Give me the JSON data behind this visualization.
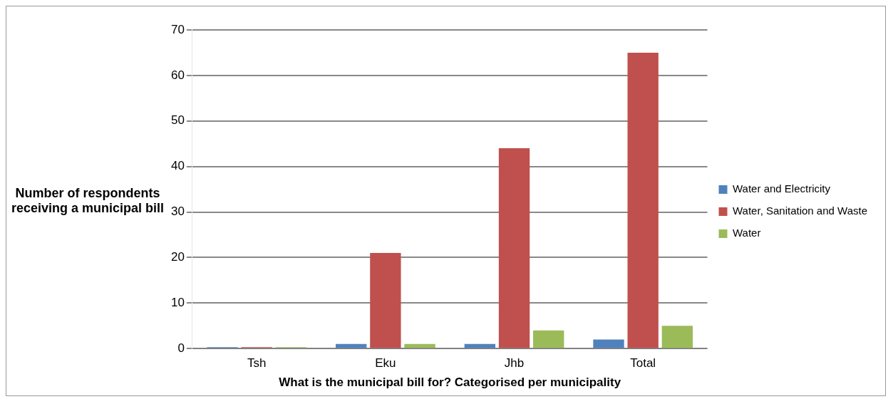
{
  "chart_data": {
    "type": "bar",
    "xlabel": "What is the municipal bill for? Categorised per municipality",
    "ylabel": "Number of respondents receiving a municipal bill",
    "categories": [
      "Tsh",
      "Eku",
      "Jhb",
      "Total"
    ],
    "series": [
      {
        "name": "Water and Electricity",
        "color": "#4f81bd",
        "values": [
          0,
          1,
          1,
          2
        ]
      },
      {
        "name": "Water, Sanitation and Waste",
        "color": "#c0504d",
        "values": [
          0,
          21,
          44,
          65
        ]
      },
      {
        "name": "Water",
        "color": "#9bbb59",
        "values": [
          0,
          1,
          4,
          5
        ]
      }
    ],
    "ylim": [
      0,
      70
    ],
    "yticks": [
      0,
      10,
      20,
      30,
      40,
      50,
      60,
      70
    ],
    "grid": "y",
    "legend": "right"
  }
}
